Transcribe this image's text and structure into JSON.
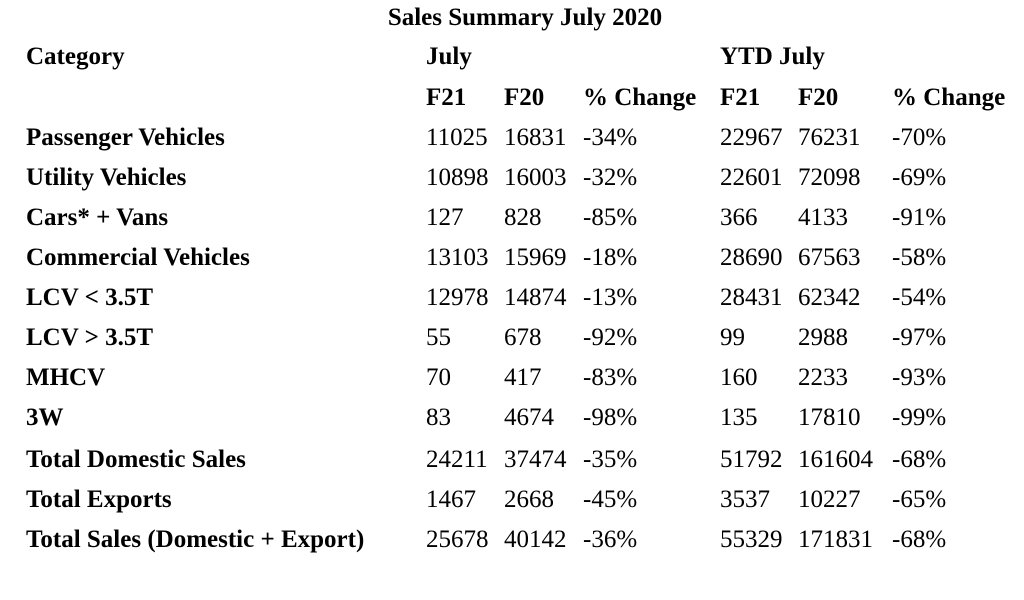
{
  "title": "Sales Summary July 2020",
  "header": {
    "category_label": "Category",
    "july_label": "July",
    "ytd_label": "YTD July",
    "sub_headers": [
      "F21",
      "F20",
      "% Change",
      "F21",
      "F20",
      "% Change"
    ]
  },
  "rows": [
    {
      "category": "Passenger Vehicles",
      "july_f21": "11025",
      "july_f20": "16831",
      "july_change": "-34%",
      "ytd_f21": "22967",
      "ytd_f20": "76231",
      "ytd_change": "-70%"
    },
    {
      "category": "Utility Vehicles",
      "july_f21": "10898",
      "july_f20": "16003",
      "july_change": "-32%",
      "ytd_f21": "22601",
      "ytd_f20": "72098",
      "ytd_change": "-69%"
    },
    {
      "category": "Cars* + Vans",
      "july_f21": "127",
      "july_f20": "828",
      "july_change": "-85%",
      "ytd_f21": "366",
      "ytd_f20": "4133",
      "ytd_change": "-91%"
    },
    {
      "category": "Commercial Vehicles",
      "july_f21": "13103",
      "july_f20": "15969",
      "july_change": "-18%",
      "ytd_f21": "28690",
      "ytd_f20": "67563",
      "ytd_change": "-58%"
    },
    {
      "category": "LCV < 3.5T",
      "july_f21": "12978",
      "july_f20": "14874",
      "july_change": "-13%",
      "ytd_f21": "28431",
      "ytd_f20": "62342",
      "ytd_change": "-54%"
    },
    {
      "category": "LCV > 3.5T",
      "july_f21": "55",
      "july_f20": "678",
      "july_change": "-92%",
      "ytd_f21": "99",
      "ytd_f20": "2988",
      "ytd_change": "-97%"
    },
    {
      "category": "MHCV",
      "july_f21": "70",
      "july_f20": "417",
      "july_change": "-83%",
      "ytd_f21": "160",
      "ytd_f20": "2233",
      "ytd_change": "-93%"
    },
    {
      "category": "3W",
      "july_f21": "83",
      "july_f20": "4674",
      "july_change": "-98%",
      "ytd_f21": "135",
      "ytd_f20": "17810",
      "ytd_change": "-99%"
    },
    {
      "category": "Total Domestic Sales",
      "july_f21": "24211",
      "july_f20": "37474",
      "july_change": "-35%",
      "ytd_f21": "51792",
      "ytd_f20": "161604",
      "ytd_change": "-68%"
    },
    {
      "category": "Total Exports",
      "july_f21": "1467",
      "july_f20": "2668",
      "july_change": "-45%",
      "ytd_f21": "3537",
      "ytd_f20": "10227",
      "ytd_change": "-65%"
    },
    {
      "category": "Total Sales (Domestic + Export)",
      "july_f21": "25678",
      "july_f20": "40142",
      "july_change": "-36%",
      "ytd_f21": "55329",
      "ytd_f20": "171831",
      "ytd_change": "-68%"
    }
  ]
}
